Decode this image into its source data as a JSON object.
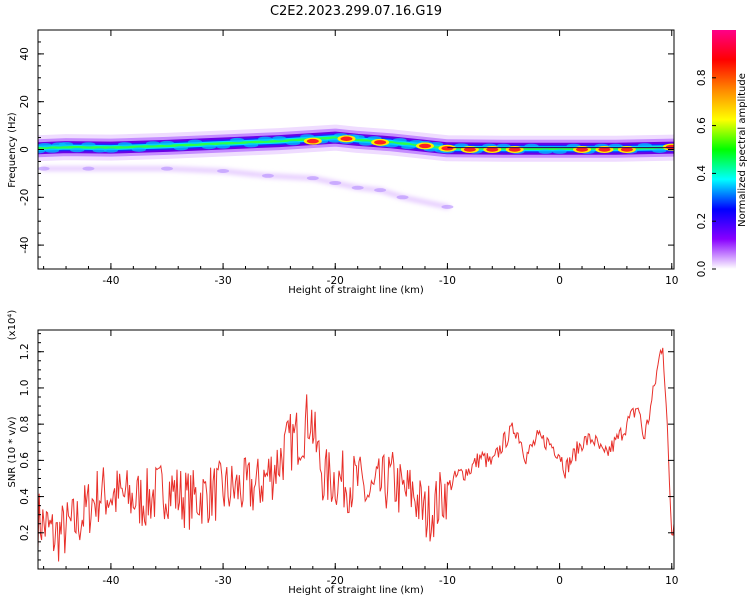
{
  "title": "C2E2.2023.299.07.16.G19",
  "spectrogram": {
    "type": "heatmap",
    "xlabel": "Height of straight line (km)",
    "ylabel": "Frequency (Hz)",
    "xlim": [
      -46.5,
      10.2
    ],
    "ylim": [
      -50,
      50
    ],
    "xticks": [
      -40,
      -30,
      -20,
      -10,
      0,
      10
    ],
    "yticks": [
      -40,
      -20,
      0,
      20,
      40
    ],
    "ridge": [
      [
        -46.5,
        0.5
      ],
      [
        -44,
        1
      ],
      [
        -40,
        0.8
      ],
      [
        -35,
        1.5
      ],
      [
        -30,
        2.5
      ],
      [
        -25,
        3.5
      ],
      [
        -20,
        5
      ],
      [
        -18,
        4
      ],
      [
        -15,
        3
      ],
      [
        -12,
        1.5
      ],
      [
        -10,
        0.5
      ],
      [
        -5,
        0.3
      ],
      [
        0,
        0.3
      ],
      [
        5,
        0.3
      ],
      [
        10.2,
        0.8
      ]
    ],
    "hot_spots": [
      [
        -22,
        3.5
      ],
      [
        -19,
        4.5
      ],
      [
        -16,
        3
      ],
      [
        -12,
        1.5
      ],
      [
        -10,
        0.5
      ],
      [
        -8,
        0
      ],
      [
        -6,
        0
      ],
      [
        -4,
        0
      ],
      [
        2,
        0
      ],
      [
        4,
        0
      ],
      [
        6,
        0
      ],
      [
        10,
        1
      ]
    ],
    "secondary_track": [
      [
        -46,
        -8
      ],
      [
        -42,
        -8
      ],
      [
        -35,
        -8
      ],
      [
        -30,
        -9
      ],
      [
        -26,
        -11
      ],
      [
        -22,
        -12
      ],
      [
        -20,
        -14
      ],
      [
        -18,
        -16
      ],
      [
        -16,
        -17
      ],
      [
        -14,
        -20
      ],
      [
        -10,
        -24
      ]
    ],
    "colorbar": {
      "label": "Normalized spectral amplitude",
      "range": [
        0,
        1
      ],
      "ticks": [
        "0.0",
        "0.2",
        "0.4",
        "0.6",
        "0.8"
      ],
      "colors": [
        "#ffffff",
        "#8800ff",
        "#0000ff",
        "#00ffff",
        "#00ff00",
        "#ffff00",
        "#ff8800",
        "#ff0000",
        "#ff0088"
      ]
    }
  },
  "chart_data": {
    "type": "line",
    "title": "C2E2.2023.299.07.16.G19",
    "xlabel": "Height of straight line (km)",
    "ylabel": "SNR (10 * v/v)",
    "scale_label": "(x10⁴)",
    "xlim": [
      -46.5,
      10.2
    ],
    "ylim": [
      0,
      1.32
    ],
    "xticks": [
      -40,
      -30,
      -20,
      -10,
      0,
      10
    ],
    "yticks": [
      "0.2",
      "0.4",
      "0.6",
      "0.8",
      "1.0",
      "1.2"
    ],
    "series": [
      {
        "color": "#e8302a",
        "x": [
          -46.5,
          -45,
          -43,
          -41,
          -39,
          -37,
          -35,
          -33,
          -31,
          -29,
          -27,
          -25.5,
          -24,
          -23,
          -22.2,
          -21.8,
          -21,
          -20,
          -19,
          -18,
          -17,
          -16,
          -15,
          -14,
          -13,
          -12,
          -11,
          -10,
          -9,
          -8,
          -7,
          -6,
          -5,
          -4,
          -3.5,
          -3,
          -2,
          -1,
          0,
          0.5,
          1,
          2,
          3,
          4,
          5,
          6,
          7,
          7.5,
          8,
          9,
          9.2,
          9.5,
          10,
          10.2
        ],
        "y": [
          0.28,
          0.18,
          0.26,
          0.42,
          0.4,
          0.38,
          0.45,
          0.38,
          0.42,
          0.44,
          0.45,
          0.55,
          0.7,
          0.75,
          0.86,
          0.7,
          0.5,
          0.5,
          0.48,
          0.48,
          0.4,
          0.45,
          0.5,
          0.42,
          0.42,
          0.3,
          0.35,
          0.45,
          0.52,
          0.55,
          0.62,
          0.58,
          0.7,
          0.78,
          0.72,
          0.62,
          0.72,
          0.7,
          0.64,
          0.55,
          0.6,
          0.7,
          0.72,
          0.62,
          0.7,
          0.8,
          0.9,
          0.72,
          0.85,
          1.2,
          1.25,
          0.9,
          0.2,
          0.25
        ]
      }
    ]
  }
}
